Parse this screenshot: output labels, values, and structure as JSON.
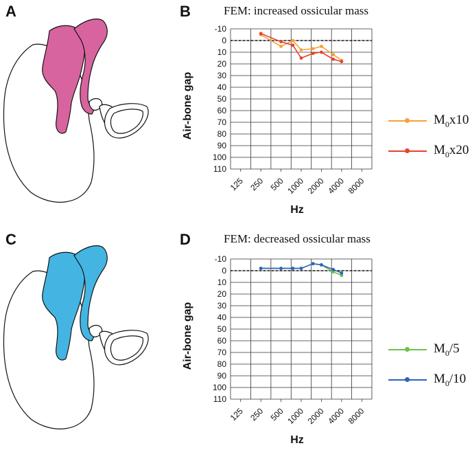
{
  "panels": [
    {
      "letter": "A",
      "shade": "#d7649f"
    },
    {
      "letter": "B"
    },
    {
      "letter": "C",
      "shade": "#44b5e3"
    },
    {
      "letter": "D"
    }
  ],
  "chart_data": [
    {
      "type": "line",
      "title": "FEM: increased ossicular mass",
      "xlabel": "Hz",
      "ylabel": "Air-bone gap",
      "x_ticks": [
        "125",
        "250",
        "500",
        "1000",
        "2000",
        "4000",
        "8000"
      ],
      "ylim": [
        -10,
        110
      ],
      "y_ticks": [
        "-10",
        "0",
        "10",
        "20",
        "30",
        "40",
        "50",
        "60",
        "70",
        "80",
        "90",
        "100",
        "110"
      ],
      "reference_line": 0,
      "grid": true,
      "legend_position": "right",
      "series": [
        {
          "base": "M",
          "sub": "0",
          "suffix": "x10",
          "color": "#f5a13b",
          "x": [
            250,
            500,
            750,
            1000,
            1500,
            2000,
            3000,
            4000
          ],
          "y": [
            -5,
            5,
            0,
            8,
            7,
            5,
            12,
            17
          ]
        },
        {
          "base": "M",
          "sub": "0",
          "suffix": "x20",
          "color": "#e8432d",
          "x": [
            250,
            500,
            750,
            1000,
            1500,
            2000,
            3000,
            4000
          ],
          "y": [
            -6,
            1,
            4,
            15,
            11,
            10,
            16,
            18
          ]
        }
      ]
    },
    {
      "type": "line",
      "title": "FEM: decreased ossicular mass",
      "xlabel": "Hz",
      "ylabel": "Air-bone gap",
      "x_ticks": [
        "125",
        "250",
        "500",
        "1000",
        "2000",
        "4000",
        "8000"
      ],
      "ylim": [
        -10,
        110
      ],
      "y_ticks": [
        "-10",
        "0",
        "10",
        "20",
        "30",
        "40",
        "50",
        "60",
        "70",
        "80",
        "90",
        "100",
        "110"
      ],
      "reference_line": 0,
      "grid": true,
      "legend_position": "right",
      "series": [
        {
          "base": "M",
          "sub": "0",
          "suffix": "/5",
          "color": "#6cc24a",
          "x": [
            250,
            500,
            750,
            1000,
            1500,
            2000,
            3000,
            4000
          ],
          "y": [
            -2,
            -2,
            -2,
            -2,
            -6,
            -5,
            1,
            4
          ]
        },
        {
          "base": "M",
          "sub": "0",
          "suffix": "/10",
          "color": "#2e63b8",
          "x": [
            250,
            500,
            750,
            1000,
            1500,
            2000,
            3000,
            4000
          ],
          "y": [
            -2,
            -2,
            -2,
            -2,
            -6,
            -5,
            -1,
            2
          ]
        }
      ]
    }
  ]
}
